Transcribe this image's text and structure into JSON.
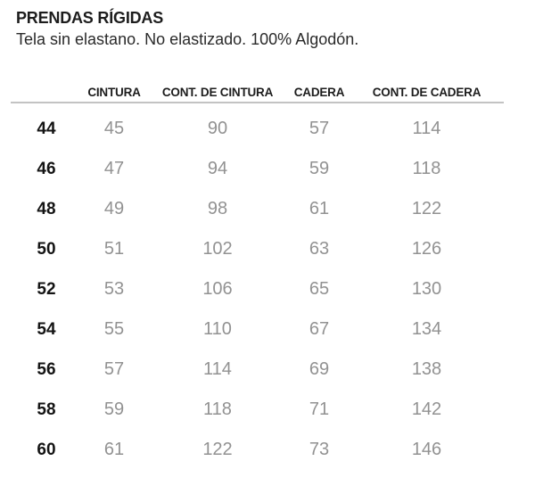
{
  "header": {
    "title": "PRENDAS RÍGIDAS",
    "subtitle": "Tela sin elastano. No elastizado. 100% Algodón."
  },
  "table": {
    "size_column_header": "",
    "columns": [
      "CINTURA",
      "CONT. DE CINTURA",
      "CADERA",
      "CONT. DE CADERA"
    ],
    "rows": [
      {
        "size": "44",
        "values": [
          "45",
          "90",
          "57",
          "114"
        ]
      },
      {
        "size": "46",
        "values": [
          "47",
          "94",
          "59",
          "118"
        ]
      },
      {
        "size": "48",
        "values": [
          "49",
          "98",
          "61",
          "122"
        ]
      },
      {
        "size": "50",
        "values": [
          "51",
          "102",
          "63",
          "126"
        ]
      },
      {
        "size": "52",
        "values": [
          "53",
          "106",
          "65",
          "130"
        ]
      },
      {
        "size": "54",
        "values": [
          "55",
          "110",
          "67",
          "134"
        ]
      },
      {
        "size": "56",
        "values": [
          "57",
          "114",
          "69",
          "138"
        ]
      },
      {
        "size": "58",
        "values": [
          "59",
          "118",
          "71",
          "142"
        ]
      },
      {
        "size": "60",
        "values": [
          "61",
          "122",
          "73",
          "146"
        ]
      }
    ]
  },
  "colors": {
    "title_text": "#1d1d1d",
    "size_text": "#141414",
    "value_text": "#929292",
    "header_divider": "#c3c3c3",
    "background": "#ffffff"
  }
}
